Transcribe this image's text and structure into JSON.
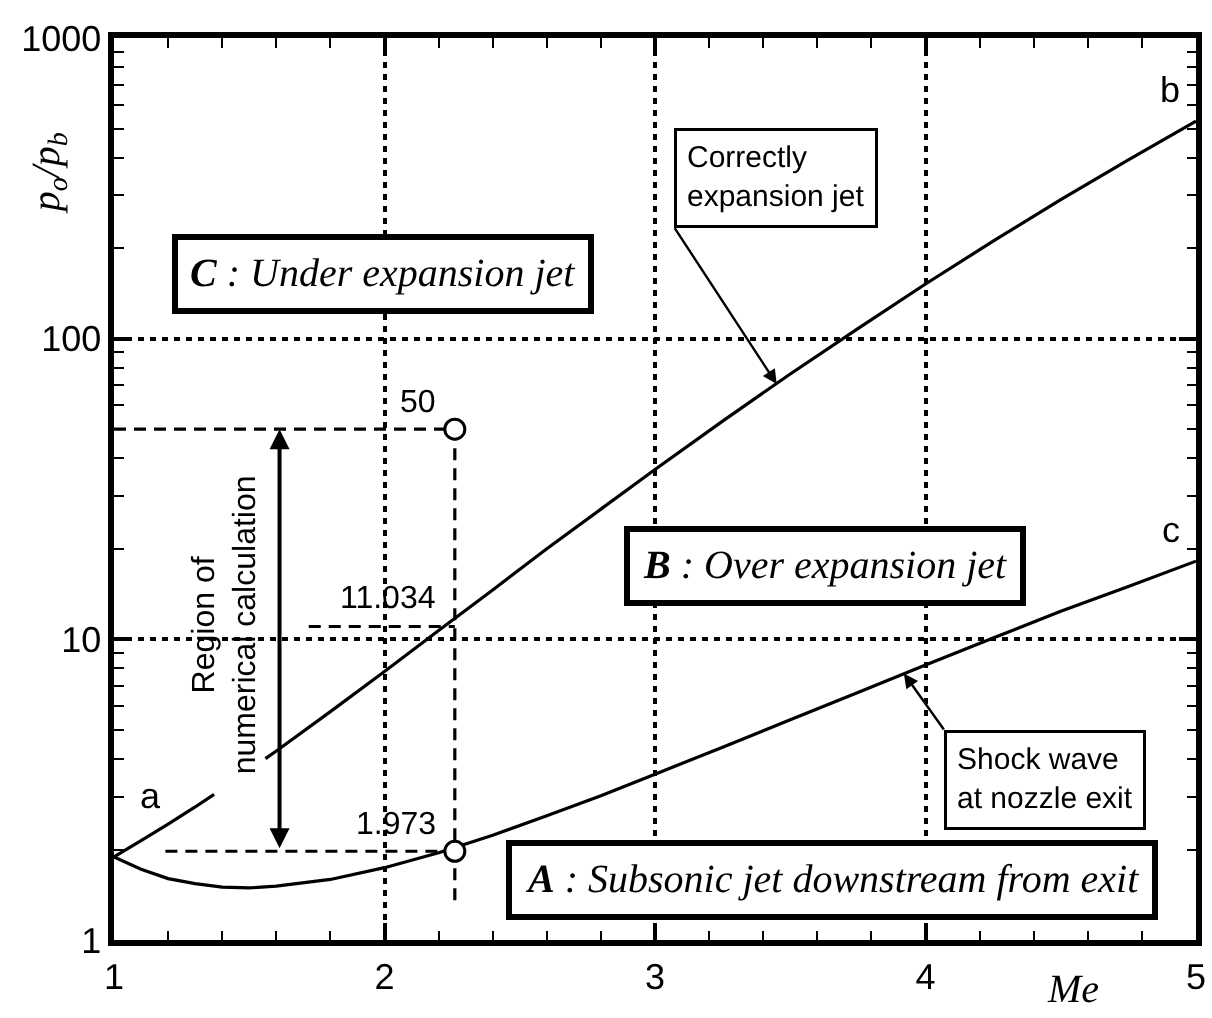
{
  "chart_data": {
    "type": "line",
    "xlabel": "Me",
    "ylabel": "p$_{o}$/p$_{b}$",
    "xlim": [
      1,
      5
    ],
    "xticks": [
      1,
      {
        "value": 1.2,
        "label": null
      },
      {
        "value": 1.4,
        "label": null
      },
      {
        "value": 1.6,
        "label": null
      },
      {
        "value": 1.8,
        "label": null
      },
      2,
      {
        "value": 2.2,
        "label": null
      },
      {
        "value": 2.4,
        "label": null
      },
      {
        "value": 2.6,
        "label": null
      },
      {
        "value": 2.8,
        "label": null
      },
      3,
      {
        "value": 3.2,
        "label": null
      },
      {
        "value": 3.4,
        "label": null
      },
      {
        "value": 3.6,
        "label": null
      },
      {
        "value": 3.8,
        "label": null
      },
      4,
      {
        "value": 4.2,
        "label": null
      },
      {
        "value": 4.4,
        "label": null
      },
      {
        "value": 4.6,
        "label": null
      },
      {
        "value": 4.8,
        "label": null
      },
      5
    ],
    "ylim": [
      1,
      1000
    ],
    "yticks": [
      1,
      {
        "value": 2,
        "label": null
      },
      {
        "value": 3,
        "label": null
      },
      {
        "value": 4,
        "label": null
      },
      {
        "value": 5,
        "label": null
      },
      {
        "value": 6,
        "label": null
      },
      {
        "value": 7,
        "label": null
      },
      {
        "value": 8,
        "label": null
      },
      {
        "value": 9,
        "label": null
      },
      10,
      {
        "value": 20,
        "label": null
      },
      {
        "value": 30,
        "label": null
      },
      {
        "value": 40,
        "label": null
      },
      {
        "value": 50,
        "label": null
      },
      {
        "value": 60,
        "label": null
      },
      {
        "value": 70,
        "label": null
      },
      {
        "value": 80,
        "label": null
      },
      {
        "value": 90,
        "label": null
      },
      100,
      {
        "value": 200,
        "label": null
      },
      {
        "value": 300,
        "label": null
      },
      {
        "value": 400,
        "label": null
      },
      {
        "value": 500,
        "label": null
      },
      {
        "value": 600,
        "label": null
      },
      {
        "value": 700,
        "label": null
      },
      {
        "value": 800,
        "label": null
      },
      {
        "value": 900,
        "label": null
      },
      1000
    ],
    "log": "y",
    "grid": true,
    "series": [
      {
        "color": "#000000",
        "x": [
          1.0,
          1.1,
          1.2,
          1.3,
          1.37,
          1.45,
          1.56,
          1.6,
          1.8,
          2.0,
          2.2,
          2.4,
          2.6,
          2.8,
          3.0,
          3.25,
          3.5,
          3.75,
          4.0,
          4.25,
          4.5,
          4.75,
          5.0
        ],
        "values": [
          1.89,
          2.14,
          2.43,
          2.77,
          3.05,
          null,
          4.01,
          4.25,
          5.75,
          7.82,
          10.7,
          14.6,
          20.0,
          27.1,
          36.7,
          53.2,
          76.3,
          108,
          152,
          211,
          290,
          393,
          529
        ]
      },
      {
        "color": "#000000",
        "x": [
          1.0,
          1.1,
          1.2,
          1.3,
          1.4,
          1.5,
          1.6,
          1.8,
          2.0,
          2.2,
          2.4,
          2.6,
          2.8,
          3.0,
          3.25,
          3.5,
          3.75,
          4.0,
          4.25,
          4.5,
          4.75,
          5.0
        ],
        "values": [
          1.89,
          1.72,
          1.6,
          1.54,
          1.5,
          1.49,
          1.51,
          1.59,
          1.74,
          1.95,
          2.23,
          2.59,
          3.02,
          3.56,
          4.38,
          5.4,
          6.66,
          8.21,
          10.1,
          12.4,
          15.0,
          18.2
        ]
      },
      {
        "type": "line",
        "color": "#000000",
        "line_style": "dashed",
        "x": [
          1,
          2.26,
          2.26
        ],
        "values": [
          50,
          50,
          1.32
        ]
      },
      {
        "type": "line",
        "color": "#000000",
        "line_style": "dashed",
        "x": [
          1.72,
          2.26
        ],
        "values": [
          11.034,
          11.034
        ],
        "value_labels": [
          null,
          "11.034"
        ]
      },
      {
        "type": "line",
        "color": "#000000",
        "line_style": "dashed",
        "x": [
          1.19,
          2.26
        ],
        "values": [
          1.973,
          1.973
        ]
      },
      {
        "type": "scatter",
        "color": "#000000",
        "marker": "circle",
        "x": [
          2.26,
          2.26
        ],
        "values": [
          50,
          1.973
        ],
        "value_labels": [
          "50",
          "1.973"
        ]
      }
    ],
    "annotations": [
      {
        "text": "a",
        "x": 1,
        "y": 1.89
      },
      {
        "text": "b",
        "x": 5,
        "y": 529
      },
      {
        "text": "c",
        "x": 5,
        "y": 18.2
      },
      "C : Under expansion jet",
      "B : Over expansion jet",
      "A : Subsonic jet downstream from exit",
      {
        "text": "Correctly\nexpansion jet",
        "x": 3.45,
        "y": 70.6
      },
      {
        "text": "Shock wave\nat nozzle exit",
        "x": 3.92,
        "y": 7.7
      },
      "Region of\nnumerical calculation"
    ]
  }
}
